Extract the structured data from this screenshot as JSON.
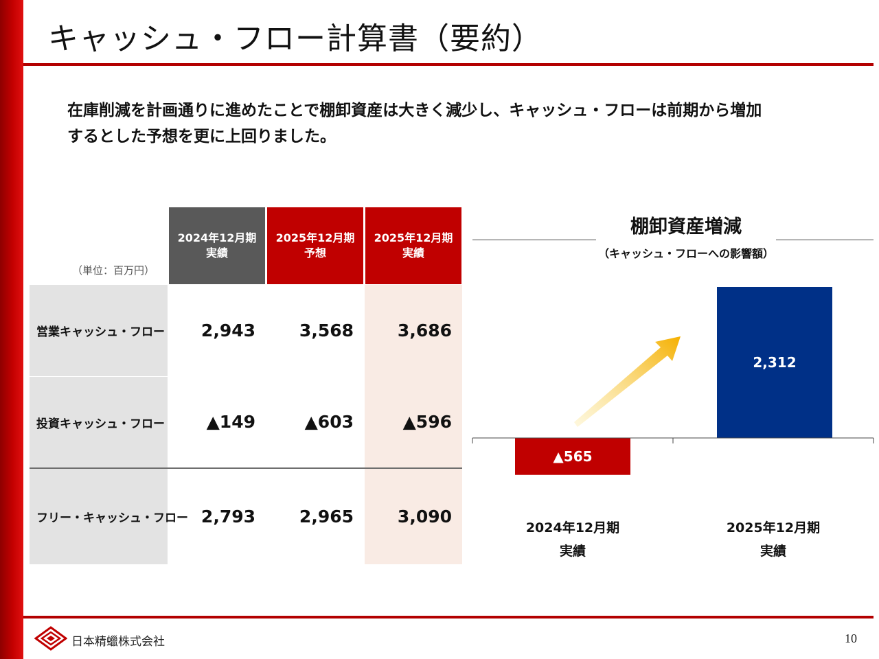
{
  "title": "キャッシュ・フロー計算書（要約）",
  "summary": {
    "line1": "在庫削減を計画通りに進めたことで棚卸資産は大きく減少し、キャッシュ・フローは前期から増加",
    "line2": "するとした予想を更に上回りました。"
  },
  "table": {
    "unit": "（単位：百万円）",
    "headers": [
      {
        "line1": "2024年12月期",
        "line2": "実績",
        "color": "#595959"
      },
      {
        "line1": "2025年12月期",
        "line2": "予想",
        "color": "#c00000"
      },
      {
        "line1": "2025年12月期",
        "line2": "実績",
        "color": "#c00000"
      }
    ],
    "rows": [
      {
        "label": "営業キャッシュ・フロー",
        "values": [
          "2,943",
          "3,568",
          "3,686"
        ]
      },
      {
        "label": "投資キャッシュ・フロー",
        "values": [
          "▲149",
          "▲603",
          "▲596"
        ]
      },
      {
        "label": "フリー・キャッシュ・フロー",
        "values": [
          "2,793",
          "2,965",
          "3,090"
        ]
      }
    ]
  },
  "chart_data": {
    "type": "bar",
    "title": "棚卸資産増減",
    "subtitle": "（キャッシュ・フローへの影響額）",
    "categories": [
      "2024年12月期 実績",
      "2025年12月期 実績"
    ],
    "category_lines": [
      [
        "2024年12月期",
        "実績"
      ],
      [
        "2025年12月期",
        "実績"
      ]
    ],
    "values": [
      -565,
      2312
    ],
    "labels": [
      "▲565",
      "2,312"
    ],
    "colors": [
      "#c00000",
      "#003087"
    ],
    "ylim": [
      -1000,
      2312
    ]
  },
  "footer": {
    "company": "日本精蠟株式会社",
    "page": "10"
  }
}
